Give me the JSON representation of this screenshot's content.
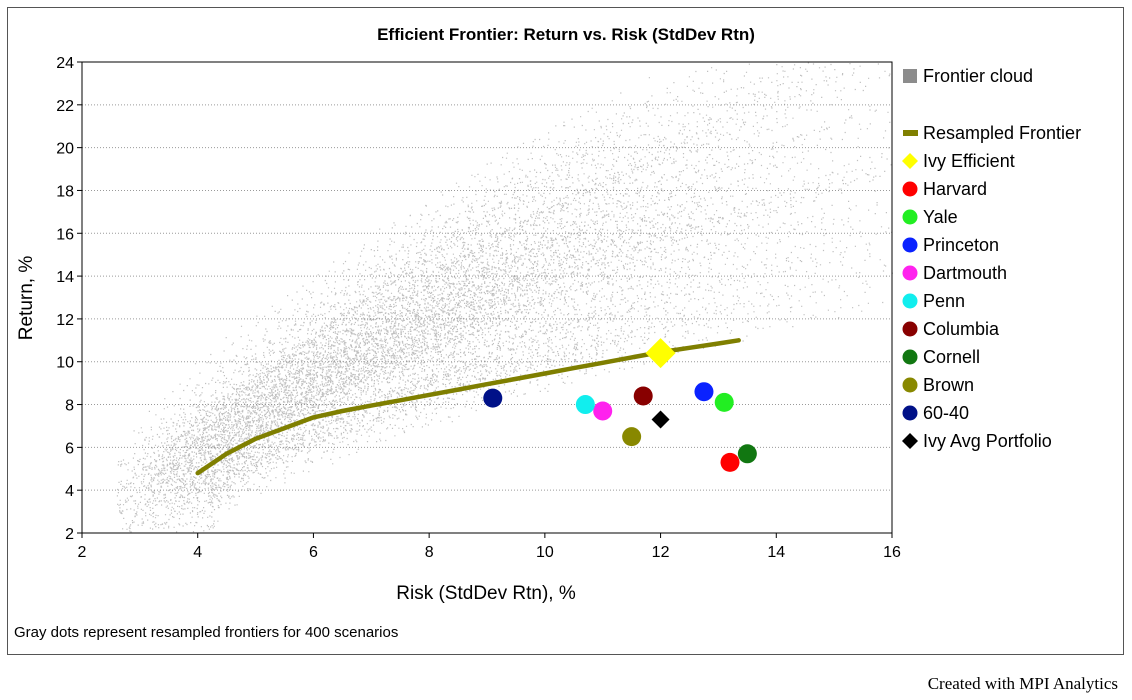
{
  "chart_data": {
    "type": "scatter",
    "title": "Efficient Frontier: Return vs. Risk (StdDev Rtn)",
    "xlabel": "Risk (StdDev Rtn), %",
    "ylabel": "Return, %",
    "xlim": [
      2,
      16
    ],
    "ylim": [
      2,
      24
    ],
    "xticks": [
      "2",
      "4",
      "6",
      "8",
      "10",
      "12",
      "14",
      "16"
    ],
    "yticks": [
      "2",
      "4",
      "6",
      "8",
      "10",
      "12",
      "14",
      "16",
      "18",
      "20",
      "22",
      "24"
    ],
    "grid": "horizontal dotted",
    "legend_position": "right",
    "frontier_cloud": {
      "name": "Frontier cloud",
      "color": "#8c8c8c",
      "scenarios": 400
    },
    "resampled_frontier": {
      "name": "Resampled Frontier",
      "color": "#7f7f00",
      "x": [
        4.0,
        4.5,
        5.0,
        5.5,
        6.0,
        6.5,
        7.0,
        7.5,
        8.0,
        8.5,
        9.0,
        9.5,
        10.0,
        10.5,
        11.0,
        11.5,
        12.0,
        12.5,
        13.0,
        13.35
      ],
      "y": [
        4.8,
        5.7,
        6.4,
        6.9,
        7.4,
        7.7,
        7.95,
        8.2,
        8.45,
        8.7,
        8.95,
        9.2,
        9.45,
        9.7,
        9.95,
        10.2,
        10.45,
        10.65,
        10.85,
        11.0
      ]
    },
    "series": [
      {
        "name": "Ivy Efficient",
        "x": 12.0,
        "y": 10.4,
        "color": "#ffff00",
        "marker": "diamond"
      },
      {
        "name": "Harvard",
        "x": 13.2,
        "y": 5.3,
        "color": "#ff0000",
        "marker": "circle"
      },
      {
        "name": "Yale",
        "x": 13.1,
        "y": 8.1,
        "color": "#22ee22",
        "marker": "circle"
      },
      {
        "name": "Princeton",
        "x": 12.75,
        "y": 8.6,
        "color": "#0a22ff",
        "marker": "circle"
      },
      {
        "name": "Dartmouth",
        "x": 11.0,
        "y": 7.7,
        "color": "#ff22ee",
        "marker": "circle"
      },
      {
        "name": "Penn",
        "x": 10.7,
        "y": 8.0,
        "color": "#11eeee",
        "marker": "circle"
      },
      {
        "name": "Columbia",
        "x": 11.7,
        "y": 8.4,
        "color": "#880000",
        "marker": "circle"
      },
      {
        "name": "Cornell",
        "x": 13.5,
        "y": 5.7,
        "color": "#117711",
        "marker": "circle"
      },
      {
        "name": "Brown",
        "x": 11.5,
        "y": 6.5,
        "color": "#888800",
        "marker": "circle"
      },
      {
        "name": "60-40",
        "x": 9.1,
        "y": 8.3,
        "color": "#001188",
        "marker": "circle"
      },
      {
        "name": "Ivy Avg Portfolio",
        "x": 12.0,
        "y": 7.3,
        "color": "#000000",
        "marker": "diamond"
      }
    ]
  },
  "footnote": "Gray dots represent resampled frontiers for 400 scenarios",
  "credit": "Created with MPI Analytics"
}
